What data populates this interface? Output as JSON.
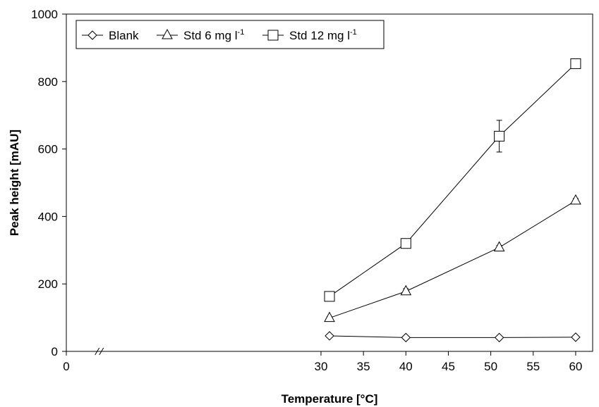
{
  "chart_data": {
    "type": "line",
    "xlabel": "Temperature [°C]",
    "ylabel": "Peak height [mAU]",
    "xlim": [
      0,
      62
    ],
    "ylim": [
      0,
      1000
    ],
    "x_ticks": [
      0,
      30,
      35,
      40,
      45,
      50,
      55,
      60
    ],
    "x_tick_labels": [
      "0",
      "30",
      "35",
      "40",
      "45",
      "50",
      "55",
      "60"
    ],
    "y_ticks": [
      0,
      200,
      400,
      600,
      800,
      1000
    ],
    "y_tick_labels": [
      "0",
      "200",
      "400",
      "600",
      "800",
      "1000"
    ],
    "x_axis_break": true,
    "grid": false,
    "legend_position": "top-left",
    "series": [
      {
        "name": "Blank",
        "marker": "diamond",
        "x": [
          31,
          40,
          51,
          60
        ],
        "y": [
          46,
          41,
          41,
          42
        ],
        "error": [
          5,
          4,
          4,
          4
        ]
      },
      {
        "name": "Std 6 mg l",
        "name_superscript": "-1",
        "marker": "triangle",
        "x": [
          31,
          40,
          51,
          60
        ],
        "y": [
          99,
          178,
          308,
          447
        ],
        "error": [
          4,
          8,
          6,
          6
        ]
      },
      {
        "name": "Std 12 mg l",
        "name_superscript": "-1",
        "marker": "square",
        "x": [
          31,
          40,
          51,
          60
        ],
        "y": [
          163,
          320,
          638,
          853
        ],
        "error": [
          7,
          5,
          47,
          9
        ]
      }
    ]
  }
}
